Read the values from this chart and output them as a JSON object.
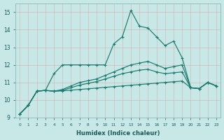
{
  "xlabel": "Humidex (Indice chaleur)",
  "background_color": "#c8e8e8",
  "grid_color": "#e8f4f4",
  "line_color": "#1a7a6e",
  "ylim": [
    9,
    15.5
  ],
  "xlim": [
    -0.5,
    23.5
  ],
  "yticks": [
    9,
    10,
    11,
    12,
    13,
    14,
    15
  ],
  "xticks": [
    0,
    1,
    2,
    3,
    4,
    5,
    6,
    7,
    8,
    9,
    10,
    11,
    12,
    13,
    14,
    15,
    16,
    17,
    18,
    19,
    20,
    21,
    22,
    23
  ],
  "series": [
    [
      9.2,
      9.7,
      10.5,
      10.55,
      11.5,
      12.0,
      12.0,
      12.0,
      12.0,
      12.0,
      12.0,
      13.2,
      13.6,
      15.1,
      14.2,
      14.1,
      13.6,
      13.1,
      13.35,
      12.4,
      10.7,
      10.65,
      11.0,
      10.8
    ],
    [
      9.2,
      9.7,
      10.5,
      10.55,
      10.5,
      10.6,
      10.8,
      11.0,
      11.1,
      11.2,
      11.4,
      11.6,
      11.8,
      12.0,
      12.1,
      12.2,
      12.0,
      11.8,
      11.9,
      12.0,
      10.7,
      10.65,
      11.0,
      10.8
    ],
    [
      9.2,
      9.7,
      10.5,
      10.55,
      10.5,
      10.55,
      10.7,
      10.85,
      10.95,
      11.05,
      11.2,
      11.35,
      11.5,
      11.6,
      11.7,
      11.75,
      11.6,
      11.5,
      11.55,
      11.6,
      10.7,
      10.65,
      11.0,
      10.8
    ],
    [
      9.2,
      9.7,
      10.5,
      10.55,
      10.5,
      10.52,
      10.56,
      10.6,
      10.64,
      10.68,
      10.72,
      10.76,
      10.8,
      10.84,
      10.88,
      10.92,
      10.96,
      11.0,
      11.04,
      11.08,
      10.7,
      10.65,
      11.0,
      10.8
    ]
  ]
}
